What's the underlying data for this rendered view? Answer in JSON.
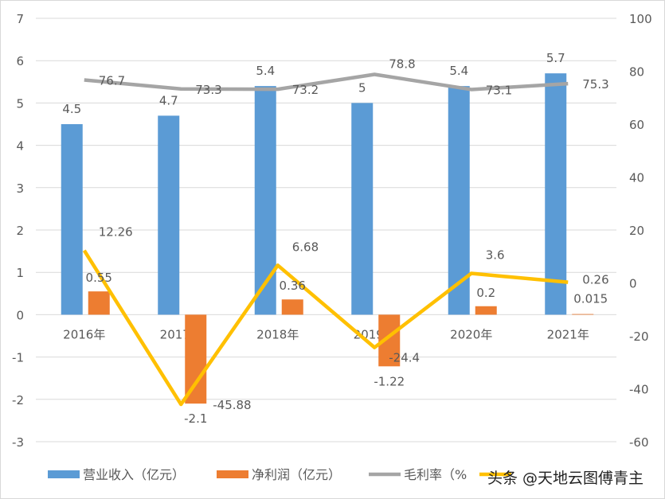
{
  "chart_data": {
    "type": "bar+line",
    "categories": [
      "2016年",
      "2017年",
      "2018年",
      "2019年",
      "2020年",
      "2021年"
    ],
    "y_left": {
      "range": [
        -3,
        7
      ],
      "ticks": [
        -3,
        -2,
        -1,
        0,
        1,
        2,
        3,
        4,
        5,
        6,
        7
      ]
    },
    "y_right": {
      "range": [
        -60,
        100
      ],
      "ticks": [
        -60,
        -40,
        -20,
        0,
        20,
        40,
        60,
        80,
        100
      ]
    },
    "grid": true,
    "legend_position": "bottom",
    "series": [
      {
        "name": "营业收入（亿元）",
        "type": "bar",
        "axis": "left",
        "color": "#5b9bd5",
        "values": [
          4.5,
          4.7,
          5.4,
          5.0,
          5.4,
          5.7
        ],
        "labels": [
          "4.5",
          "4.7",
          "5.4",
          "5",
          "5.4",
          "5.7"
        ]
      },
      {
        "name": "净利润（亿元）",
        "type": "bar",
        "axis": "left",
        "color": "#ed7d31",
        "values": [
          0.55,
          -2.1,
          0.36,
          -1.22,
          0.2,
          0.015
        ],
        "labels": [
          "0.55",
          "-2.1",
          "0.36",
          "-1.22",
          "0.2",
          "0.015"
        ]
      },
      {
        "name": "毛利率（%",
        "type": "line",
        "axis": "right",
        "color": "#a5a5a5",
        "values": [
          76.7,
          73.3,
          73.2,
          78.8,
          73.1,
          75.3
        ],
        "labels": [
          "76.7",
          "73.3",
          "73.2",
          "78.8",
          "73.1",
          "75.3"
        ]
      },
      {
        "name": "",
        "type": "line",
        "axis": "right",
        "color": "#ffc000",
        "values": [
          12.26,
          -45.88,
          6.68,
          -24.4,
          3.6,
          0.26
        ],
        "labels": [
          "12.26",
          "-45.88",
          "6.68",
          "-24.4",
          "3.6",
          "0.26"
        ]
      }
    ]
  },
  "watermark": "头条 @天地云图傅青主"
}
